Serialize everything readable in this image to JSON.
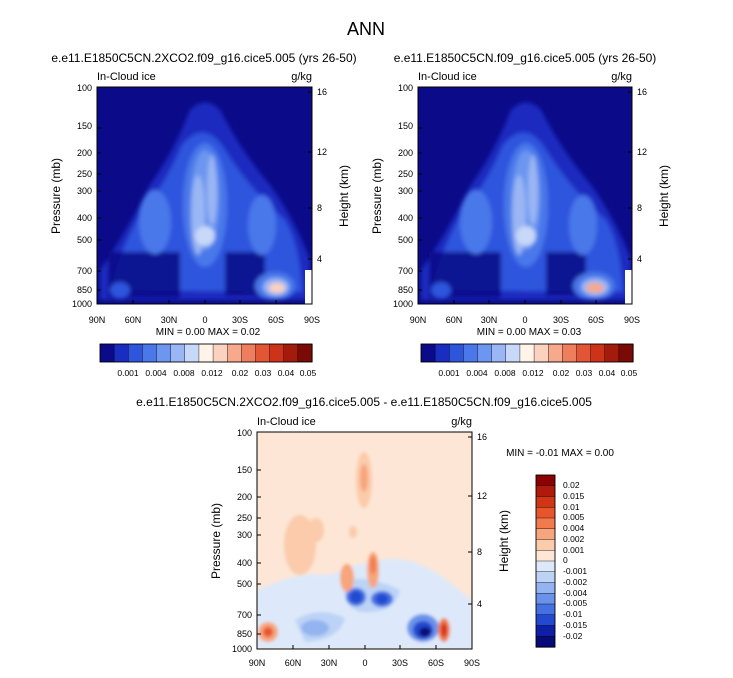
{
  "page": {
    "title": "ANN"
  },
  "chart_data": [
    {
      "type": "heatmap",
      "title": "e.e11.E1850C5CN.2XCO2.f09_g16.cice5.005 (yrs 26-50)",
      "left_label": "In-Cloud ice",
      "units": "g/kg",
      "xlabel": "",
      "ylabel": "Pressure (mb)",
      "ylabel_right": "Height (km)",
      "x_ticks": [
        "90N",
        "60N",
        "30N",
        "0",
        "30S",
        "60S",
        "90S"
      ],
      "y_ticks": [
        "100",
        "150",
        "200",
        "250",
        "300",
        "400",
        "500",
        "700",
        "850",
        "1000"
      ],
      "y_ticks_right": [
        "16",
        "12",
        "8",
        "4"
      ],
      "ylim": [
        1000,
        100
      ],
      "min_max": "MIN =  0.00  MAX =  0.02",
      "colorbar_levels": [
        "0.001",
        "0.004",
        "0.008",
        "0.012",
        "0.02",
        "0.03",
        "0.04",
        "0.05"
      ],
      "colorbar_colors": [
        "#0b0b8a",
        "#1b2cc0",
        "#2f55dd",
        "#4a78ea",
        "#6c96ef",
        "#9ab6f4",
        "#c7d8f8",
        "#fff3ea",
        "#fbd2bf",
        "#f6a98c",
        "#ee7e5e",
        "#e25636",
        "#cc3319",
        "#a51b0b",
        "#7a0a05"
      ]
    },
    {
      "type": "heatmap",
      "title": "e.e11.E1850C5CN.f09_g16.cice5.005 (yrs 26-50)",
      "left_label": "In-Cloud ice",
      "units": "g/kg",
      "xlabel": "",
      "ylabel": "Pressure (mb)",
      "ylabel_right": "Height (km)",
      "x_ticks": [
        "90N",
        "60N",
        "30N",
        "0",
        "30S",
        "60S",
        "90S"
      ],
      "y_ticks": [
        "100",
        "150",
        "200",
        "250",
        "300",
        "400",
        "500",
        "700",
        "850",
        "1000"
      ],
      "y_ticks_right": [
        "16",
        "12",
        "8",
        "4"
      ],
      "ylim": [
        1000,
        100
      ],
      "min_max": "MIN =  0.00  MAX =  0.03",
      "colorbar_levels": [
        "0.001",
        "0.004",
        "0.008",
        "0.012",
        "0.02",
        "0.03",
        "0.04",
        "0.05"
      ],
      "colorbar_colors": [
        "#0b0b8a",
        "#1b2cc0",
        "#2f55dd",
        "#4a78ea",
        "#6c96ef",
        "#9ab6f4",
        "#c7d8f8",
        "#fff3ea",
        "#fbd2bf",
        "#f6a98c",
        "#ee7e5e",
        "#e25636",
        "#cc3319",
        "#a51b0b",
        "#7a0a05"
      ]
    },
    {
      "type": "heatmap",
      "title": "e.e11.E1850C5CN.2XCO2.f09_g16.cice5.005 - e.e11.E1850C5CN.f09_g16.cice5.005",
      "left_label": "In-Cloud ice",
      "units": "g/kg",
      "xlabel": "",
      "ylabel": "Pressure (mb)",
      "ylabel_right": "Height (km)",
      "x_ticks": [
        "90N",
        "60N",
        "30N",
        "0",
        "30S",
        "60S",
        "90S"
      ],
      "y_ticks": [
        "100",
        "150",
        "200",
        "250",
        "300",
        "400",
        "500",
        "700",
        "850",
        "1000"
      ],
      "y_ticks_right": [
        "16",
        "12",
        "8",
        "4"
      ],
      "ylim": [
        1000,
        100
      ],
      "min_max": "MIN =  -0.01  MAX =  0.00",
      "colorbar_levels": [
        "0.02",
        "0.015",
        "0.01",
        "0.005",
        "0.004",
        "0.002",
        "0.001",
        "0",
        "-0.001",
        "-0.002",
        "-0.004",
        "-0.005",
        "-0.01",
        "-0.015",
        "-0.02"
      ],
      "colorbar_colors": [
        "#8b0000",
        "#b01a0a",
        "#d23416",
        "#e8552c",
        "#f27b4d",
        "#f7a57c",
        "#fbcbab",
        "#fde6d5",
        "#dde9fa",
        "#bcd3f6",
        "#93b4f0",
        "#6b92ea",
        "#4470e2",
        "#2249cf",
        "#0f1ea6",
        "#080a7a"
      ]
    }
  ]
}
